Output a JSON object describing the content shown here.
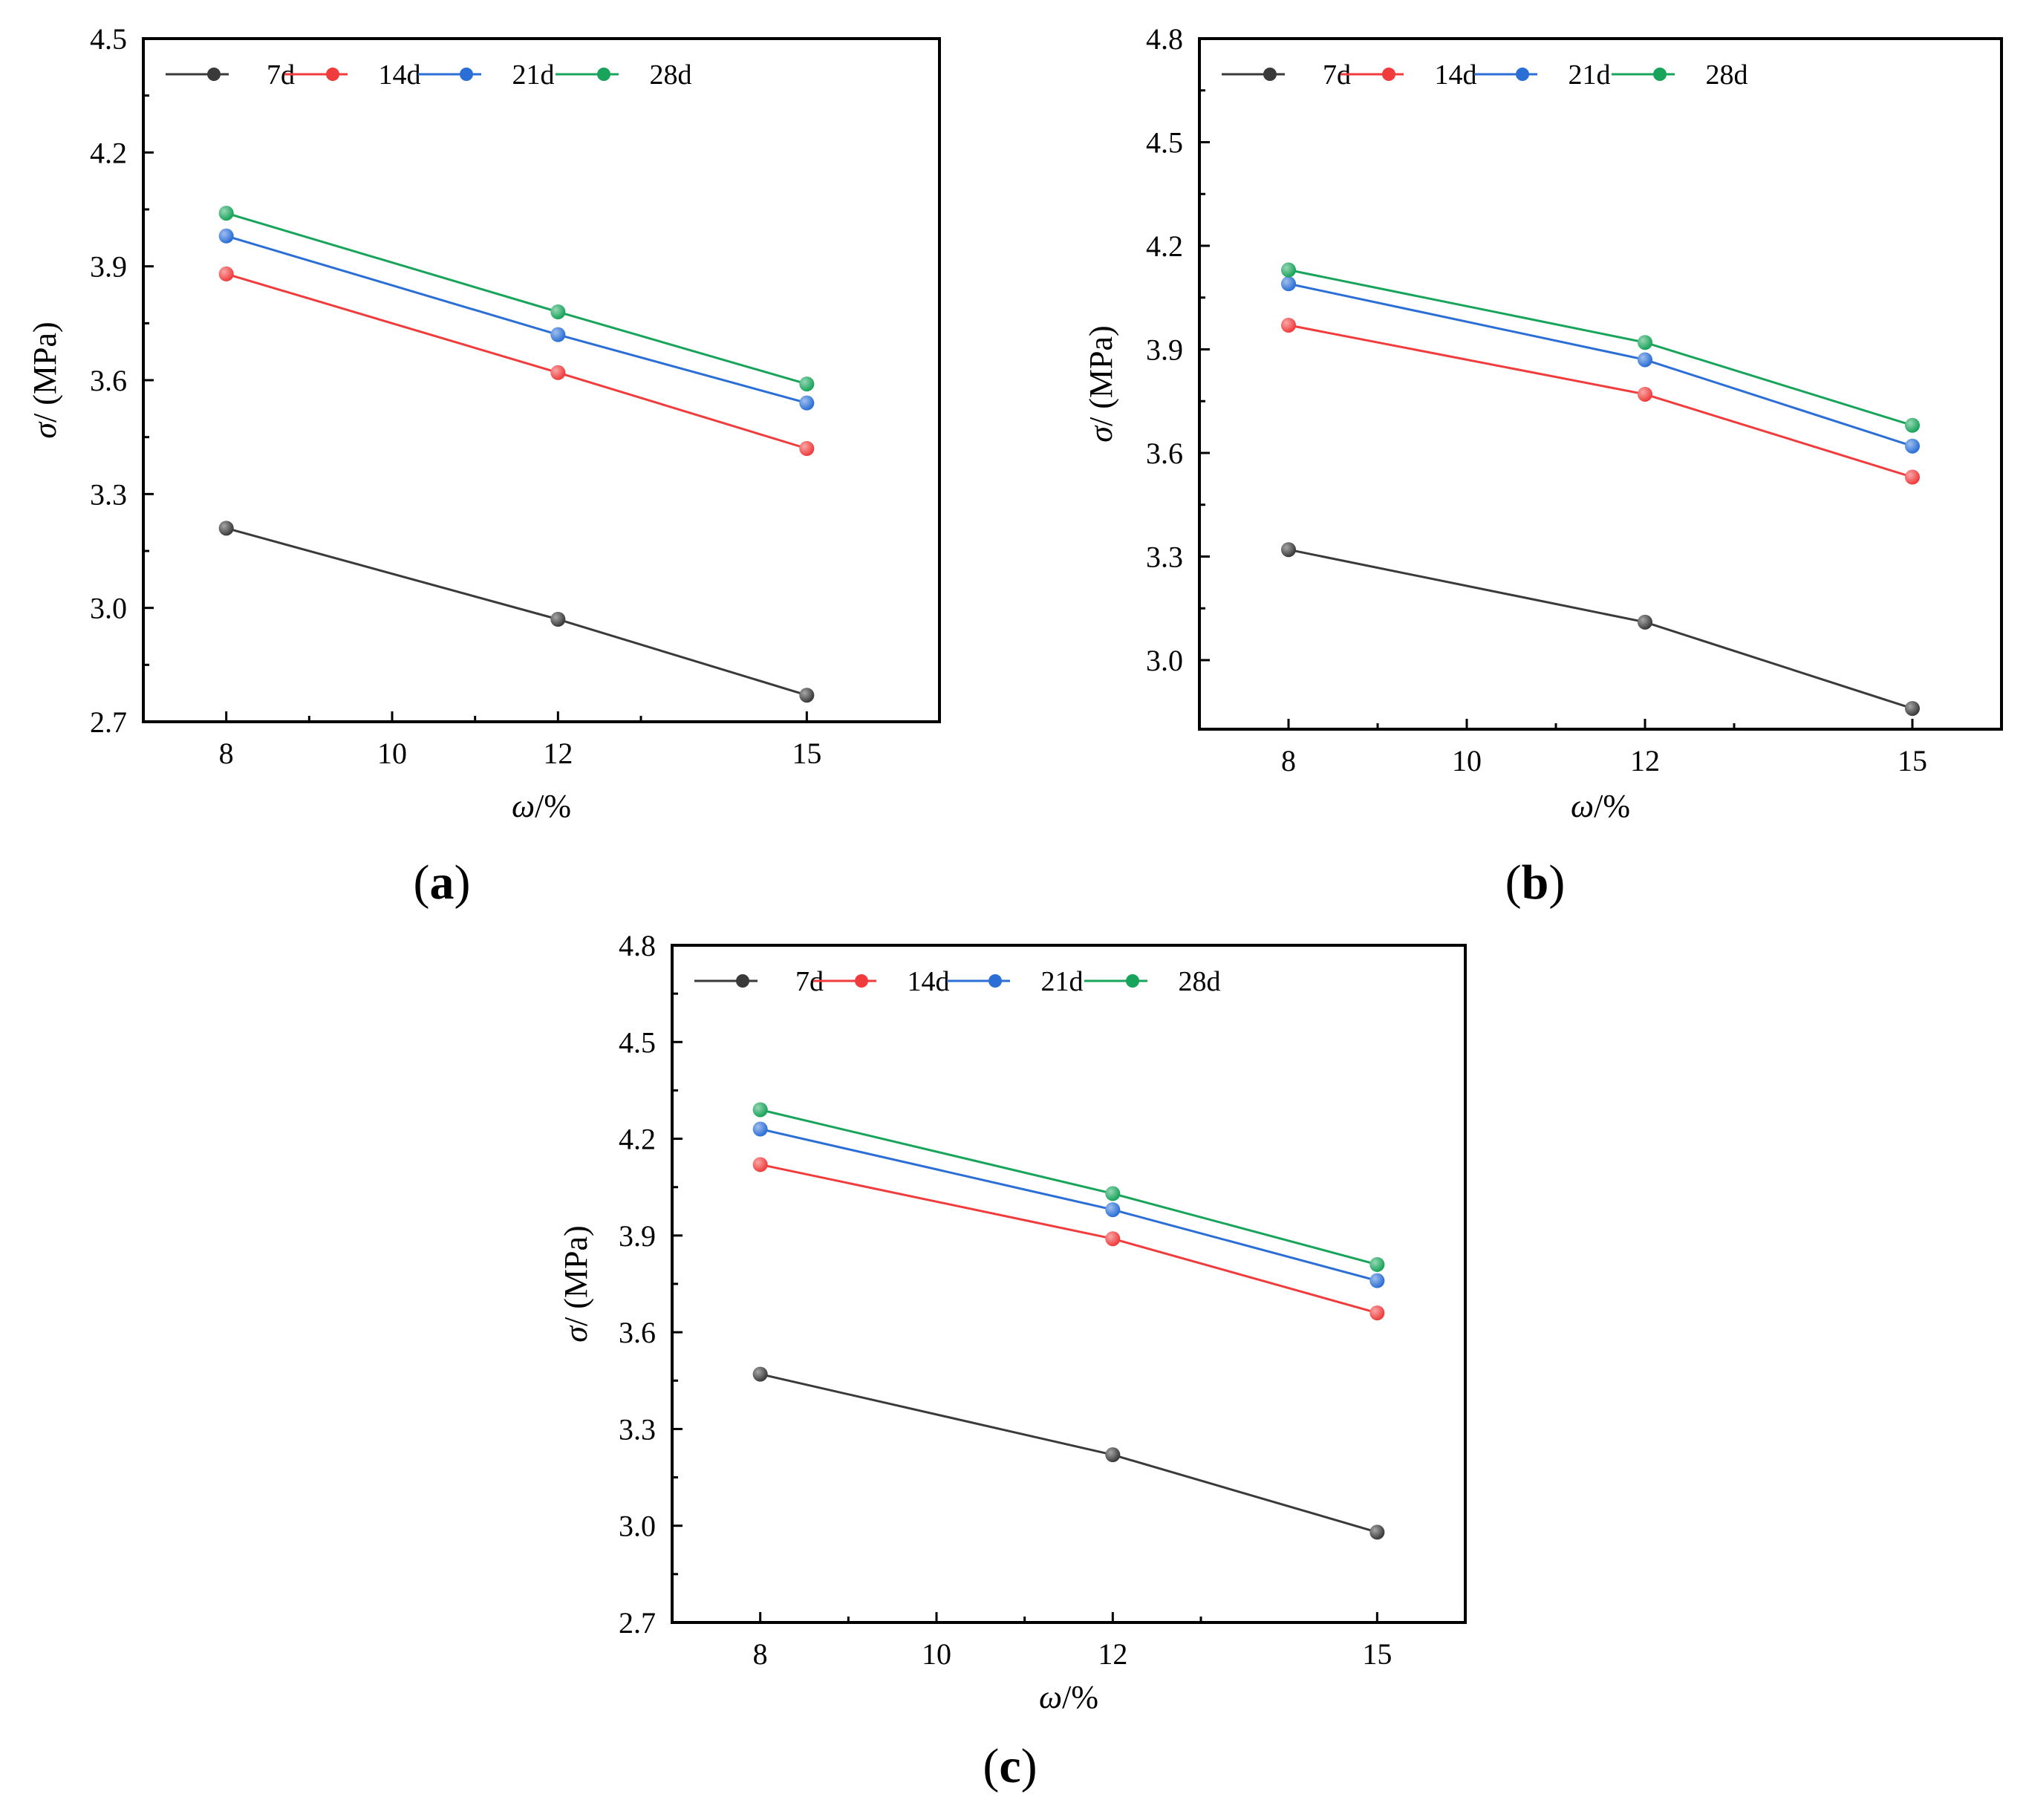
{
  "figure": {
    "colors": {
      "7d": "#3a3a3a",
      "14d": "#f03c3c",
      "21d": "#2b6fd6",
      "28d": "#18a45a"
    }
  },
  "chart_data": [
    {
      "id": "a",
      "type": "line",
      "panel_label": "(a)",
      "panel_letter": "a",
      "xlabel_sym": "ω",
      "xlabel_unit": "/%",
      "ylabel_sym": "σ",
      "ylabel_unit": "/ (MPa)",
      "xlim": [
        7.0,
        16.6
      ],
      "ylim": [
        2.7,
        4.5
      ],
      "xticks": [
        8,
        10,
        12,
        15
      ],
      "yticks": [
        "2.7",
        "3.0",
        "3.3",
        "3.6",
        "3.9",
        "4.2",
        "4.5"
      ],
      "x": [
        8,
        12,
        15
      ],
      "series": [
        {
          "name": "7d",
          "values": [
            3.21,
            2.97,
            2.77
          ]
        },
        {
          "name": "14d",
          "values": [
            3.88,
            3.62,
            3.42
          ]
        },
        {
          "name": "21d",
          "values": [
            3.98,
            3.72,
            3.54
          ]
        },
        {
          "name": "28d",
          "values": [
            4.04,
            3.78,
            3.59
          ]
        }
      ],
      "legend": "top-left"
    },
    {
      "id": "b",
      "type": "line",
      "panel_label": "(b)",
      "panel_letter": "b",
      "xlabel_sym": "ω",
      "xlabel_unit": "/%",
      "ylabel_sym": "σ",
      "ylabel_unit": "/ (MPa)",
      "xlim": [
        7.0,
        16.0
      ],
      "ylim": [
        2.8,
        4.8
      ],
      "xticks": [
        8,
        10,
        12,
        15
      ],
      "yticks": [
        "3.0",
        "3.3",
        "3.6",
        "3.9",
        "4.2",
        "4.5",
        "4.8"
      ],
      "x": [
        8,
        12,
        15
      ],
      "series": [
        {
          "name": "7d",
          "values": [
            3.32,
            3.11,
            2.86
          ]
        },
        {
          "name": "14d",
          "values": [
            3.97,
            3.77,
            3.53
          ]
        },
        {
          "name": "21d",
          "values": [
            4.09,
            3.87,
            3.62
          ]
        },
        {
          "name": "28d",
          "values": [
            4.13,
            3.92,
            3.68
          ]
        }
      ],
      "legend": "top-left"
    },
    {
      "id": "c",
      "type": "line",
      "panel_label": "(c)",
      "panel_letter": "c",
      "xlabel_sym": "ω",
      "xlabel_unit": "/%",
      "ylabel_sym": "σ",
      "ylabel_unit": "/ (MPa)",
      "xlim": [
        7.0,
        16.0
      ],
      "ylim": [
        2.7,
        4.8
      ],
      "xticks": [
        8,
        10,
        12,
        15
      ],
      "yticks": [
        "2.7",
        "3.0",
        "3.3",
        "3.6",
        "3.9",
        "4.2",
        "4.5",
        "4.8"
      ],
      "x": [
        8,
        12,
        15
      ],
      "series": [
        {
          "name": "7d",
          "values": [
            3.47,
            3.22,
            2.98
          ]
        },
        {
          "name": "14d",
          "values": [
            4.12,
            3.89,
            3.66
          ]
        },
        {
          "name": "21d",
          "values": [
            4.23,
            3.98,
            3.76
          ]
        },
        {
          "name": "28d",
          "values": [
            4.29,
            4.03,
            3.81
          ]
        }
      ],
      "legend": "top-left"
    }
  ]
}
